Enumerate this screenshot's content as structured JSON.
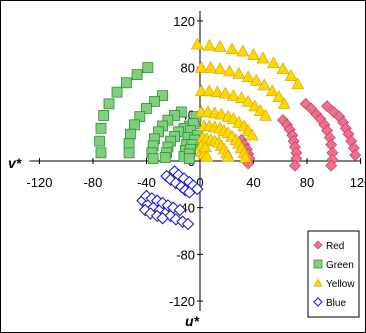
{
  "chart_data": {
    "type": "scatter",
    "xlabel": "v*",
    "ylabel": "u*",
    "xlim": [
      -120,
      120
    ],
    "ylim": [
      -120,
      120
    ],
    "x_ticks": [
      "-120",
      "-80",
      "-40",
      "0",
      "40",
      "80",
      "120"
    ],
    "y_ticks": [
      "120",
      "80",
      "40",
      "0",
      "-40",
      "-80",
      "-120"
    ],
    "grid": false,
    "legend_position": "bottom-right",
    "series": [
      {
        "name": "Red",
        "marker": "diamond",
        "color": "#ef6f8f",
        "points": [
          [
            95,
            47
          ],
          [
            100,
            42
          ],
          [
            104,
            38
          ],
          [
            107,
            33
          ],
          [
            109,
            28
          ],
          [
            111,
            23
          ],
          [
            113,
            17
          ],
          [
            115,
            11
          ],
          [
            116,
            5
          ],
          [
            79,
            49
          ],
          [
            83,
            45
          ],
          [
            87,
            40
          ],
          [
            90,
            36
          ],
          [
            93,
            31
          ],
          [
            95,
            26
          ],
          [
            97,
            20
          ],
          [
            98,
            14
          ],
          [
            99,
            7
          ],
          [
            99,
            1
          ],
          [
            98,
            -4
          ],
          [
            62,
            35
          ],
          [
            65,
            31
          ],
          [
            67,
            27
          ],
          [
            69,
            22
          ],
          [
            70,
            17
          ],
          [
            71,
            12
          ],
          [
            72,
            7
          ],
          [
            72,
            2
          ],
          [
            71,
            -4
          ],
          [
            31,
            18
          ],
          [
            33,
            14
          ],
          [
            35,
            10
          ],
          [
            36,
            6
          ],
          [
            37,
            2
          ],
          [
            36,
            -2
          ]
        ]
      },
      {
        "name": "Green",
        "marker": "square",
        "color": "#7fcf7f",
        "points": [
          [
            -39,
            80
          ],
          [
            -47,
            74
          ],
          [
            -55,
            67
          ],
          [
            -62,
            59
          ],
          [
            -68,
            49
          ],
          [
            -72,
            39
          ],
          [
            -74,
            28
          ],
          [
            -75,
            17
          ],
          [
            -74,
            7
          ],
          [
            -28,
            56
          ],
          [
            -34,
            51
          ],
          [
            -40,
            45
          ],
          [
            -45,
            38
          ],
          [
            -49,
            31
          ],
          [
            -52,
            23
          ],
          [
            -53,
            15
          ],
          [
            -53,
            7
          ],
          [
            -14,
            42
          ],
          [
            -19,
            39
          ],
          [
            -24,
            35
          ],
          [
            -28,
            30
          ],
          [
            -31,
            25
          ],
          [
            -34,
            19
          ],
          [
            -35,
            13
          ],
          [
            -36,
            7
          ],
          [
            -35,
            2
          ],
          [
            -8,
            30
          ],
          [
            -12,
            28
          ],
          [
            -16,
            25
          ],
          [
            -19,
            21
          ],
          [
            -22,
            17
          ],
          [
            -24,
            12
          ],
          [
            -25,
            7
          ],
          [
            -26,
            3
          ],
          [
            -3,
            38
          ],
          [
            -5,
            32
          ],
          [
            -7,
            26
          ],
          [
            -9,
            20
          ],
          [
            -10,
            14
          ],
          [
            -11,
            9
          ],
          [
            -12,
            4
          ],
          [
            -2,
            22
          ],
          [
            -4,
            18
          ],
          [
            -6,
            14
          ],
          [
            -7,
            10
          ],
          [
            -8,
            6
          ],
          [
            -8,
            2
          ]
        ]
      },
      {
        "name": "Yellow",
        "marker": "triangle",
        "color": "#ffd700",
        "points": [
          [
            -2,
            100
          ],
          [
            7,
            99
          ],
          [
            15,
            98
          ],
          [
            24,
            96
          ],
          [
            32,
            94
          ],
          [
            40,
            91
          ],
          [
            47,
            88
          ],
          [
            55,
            84
          ],
          [
            62,
            79
          ],
          [
            68,
            73
          ],
          [
            73,
            66
          ],
          [
            1,
            80
          ],
          [
            8,
            80
          ],
          [
            15,
            79
          ],
          [
            22,
            77
          ],
          [
            29,
            75
          ],
          [
            36,
            72
          ],
          [
            42,
            69
          ],
          [
            48,
            65
          ],
          [
            54,
            60
          ],
          [
            59,
            55
          ],
          [
            63,
            49
          ],
          [
            1,
            60
          ],
          [
            7,
            60
          ],
          [
            13,
            59
          ],
          [
            19,
            58
          ],
          [
            25,
            56
          ],
          [
            31,
            54
          ],
          [
            36,
            51
          ],
          [
            41,
            47
          ],
          [
            45,
            43
          ],
          [
            49,
            39
          ],
          [
            1,
            42
          ],
          [
            6,
            42
          ],
          [
            11,
            41
          ],
          [
            16,
            40
          ],
          [
            21,
            38
          ],
          [
            25,
            36
          ],
          [
            29,
            33
          ],
          [
            33,
            30
          ],
          [
            36,
            26
          ],
          [
            39,
            22
          ],
          [
            3,
            30
          ],
          [
            7,
            30
          ],
          [
            11,
            29
          ],
          [
            15,
            28
          ],
          [
            18,
            26
          ],
          [
            21,
            24
          ],
          [
            24,
            21
          ],
          [
            27,
            18
          ],
          [
            29,
            15
          ],
          [
            31,
            11
          ],
          [
            33,
            7
          ],
          [
            34,
            3
          ],
          [
            2,
            20
          ],
          [
            5,
            19
          ],
          [
            8,
            18
          ],
          [
            11,
            17
          ],
          [
            14,
            16
          ],
          [
            16,
            13
          ],
          [
            18,
            10
          ],
          [
            20,
            7
          ],
          [
            21,
            4
          ],
          [
            1,
            8
          ],
          [
            3,
            6
          ],
          [
            5,
            4
          ],
          [
            1,
            13
          ],
          [
            4,
            12
          ]
        ]
      },
      {
        "name": "Blue",
        "marker": "diamond-open",
        "color": "#1e1ec8",
        "points": [
          [
            -19,
            -9
          ],
          [
            -16,
            -12
          ],
          [
            -12,
            -15
          ],
          [
            -8,
            -18
          ],
          [
            -5,
            -21
          ],
          [
            -2,
            -24
          ],
          [
            -25,
            -13
          ],
          [
            -22,
            -16
          ],
          [
            -18,
            -19
          ],
          [
            -14,
            -22
          ],
          [
            -11,
            -25
          ],
          [
            -8,
            -27
          ],
          [
            -43,
            -34
          ],
          [
            -39,
            -37
          ],
          [
            -35,
            -40
          ],
          [
            -30,
            -42
          ],
          [
            -26,
            -45
          ],
          [
            -22,
            -47
          ],
          [
            -18,
            -50
          ],
          [
            -13,
            -52
          ],
          [
            -9,
            -54
          ],
          [
            -40,
            -30
          ],
          [
            -36,
            -32
          ],
          [
            -32,
            -34
          ],
          [
            -28,
            -36
          ],
          [
            -24,
            -38
          ],
          [
            -20,
            -40
          ],
          [
            -15,
            -42
          ],
          [
            -41,
            -42
          ],
          [
            -37,
            -45
          ],
          [
            -32,
            -47
          ],
          [
            -28,
            -49
          ]
        ]
      }
    ]
  }
}
